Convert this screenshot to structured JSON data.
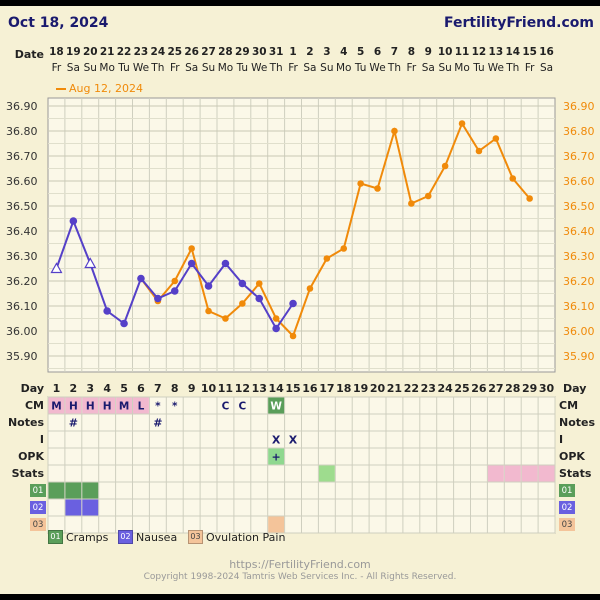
{
  "header": {
    "date": "Oct 18, 2024",
    "site": "FertilityFriend.com"
  },
  "footer": {
    "url": "https://FertilityFriend.com",
    "copyright": "Copyright 1998-2024 Tamtris Web Services Inc. - All Rights Reserved."
  },
  "colors": {
    "orange": "#f08a0a",
    "blue": "#5540c8",
    "cm_pink": "#f2b9cf",
    "cm_green": "#5a9e5a",
    "stats_green": "#9edc8e",
    "stats_pink": "#f2b9cf",
    "cramps": "#5a9e5a",
    "nausea": "#6a60e0",
    "ovulation": "#f4c49a",
    "background": "#f6f1d5"
  },
  "chart_data": {
    "type": "line",
    "title": "",
    "xlabel": "Day",
    "ylabel": "",
    "ylim": [
      35.8,
      36.95
    ],
    "y_ticks": [
      "36.90",
      "36.80",
      "36.70",
      "36.60",
      "36.50",
      "36.40",
      "36.30",
      "36.20",
      "36.10",
      "36.00",
      "35.90"
    ],
    "dates": [
      "18",
      "19",
      "20",
      "21",
      "22",
      "23",
      "24",
      "25",
      "26",
      "27",
      "28",
      "29",
      "30",
      "31",
      "1",
      "2",
      "3",
      "4",
      "5",
      "6",
      "7",
      "8",
      "9",
      "10",
      "11",
      "12",
      "13",
      "14",
      "15",
      "16"
    ],
    "weekdays": [
      "Fr",
      "Sa",
      "Su",
      "Mo",
      "Tu",
      "We",
      "Th",
      "Fr",
      "Sa",
      "Su",
      "Mo",
      "Tu",
      "We",
      "Th",
      "Fr",
      "Sa",
      "Su",
      "Mo",
      "Tu",
      "We",
      "Th",
      "Fr",
      "Sa",
      "Su",
      "Mo",
      "Tu",
      "We",
      "Th",
      "Fr",
      "Sa"
    ],
    "days": [
      "1",
      "2",
      "3",
      "4",
      "5",
      "6",
      "7",
      "8",
      "9",
      "10",
      "11",
      "12",
      "13",
      "14",
      "15",
      "16",
      "17",
      "18",
      "19",
      "20",
      "21",
      "22",
      "23",
      "24",
      "25",
      "26",
      "27",
      "28",
      "29",
      "30"
    ],
    "series": [
      {
        "name": "Aug 12, 2024",
        "color": "#f08a0a",
        "values": [
          null,
          null,
          null,
          null,
          null,
          36.21,
          36.12,
          36.2,
          36.33,
          36.08,
          36.05,
          36.11,
          36.19,
          36.05,
          35.98,
          36.17,
          36.29,
          36.33,
          36.59,
          36.57,
          36.8,
          36.51,
          36.54,
          36.66,
          36.83,
          36.72,
          36.77,
          36.61,
          36.53,
          null
        ]
      },
      {
        "name": "",
        "color": "#5540c8",
        "values": [
          36.25,
          36.44,
          36.27,
          36.08,
          36.03,
          36.21,
          36.13,
          36.16,
          36.27,
          36.18,
          36.27,
          36.19,
          36.13,
          36.01,
          36.11,
          null,
          null,
          null,
          null,
          null,
          null,
          null,
          null,
          null,
          null,
          null,
          null,
          null,
          null,
          null
        ],
        "open_markers": [
          0,
          2
        ]
      }
    ],
    "rows": {
      "labels": [
        "CM",
        "Notes",
        "I",
        "OPK",
        "Stats",
        "01",
        "02",
        "03"
      ],
      "cm": [
        "M",
        "H",
        "H",
        "H",
        "M",
        "L",
        "*",
        "*",
        "",
        "",
        "C",
        "C",
        "",
        "W",
        "",
        "",
        "",
        "",
        "",
        "",
        "",
        "",
        "",
        "",
        "",
        "",
        "",
        "",
        "",
        ""
      ],
      "cm_colored": [
        0,
        1,
        2,
        3,
        4,
        5,
        13
      ],
      "notes": [
        "",
        "#",
        "",
        "",
        "",
        "",
        "#",
        "",
        "",
        "",
        "",
        "",
        "",
        "",
        "",
        "",
        "",
        "",
        "",
        "",
        "",
        "",
        "",
        "",
        "",
        "",
        "",
        "",
        "",
        ""
      ],
      "intercourse": [
        "",
        "",
        "",
        "",
        "",
        "",
        "",
        "",
        "",
        "",
        "",
        "",
        "",
        "X",
        "X",
        "",
        "",
        "",
        "",
        "",
        "",
        "",
        "",
        "",
        "",
        "",
        "",
        "",
        "",
        ""
      ],
      "opk": [
        "",
        "",
        "",
        "",
        "",
        "",
        "",
        "",
        "",
        "",
        "",
        "",
        "",
        "+",
        "",
        "",
        "",
        "",
        "",
        "",
        "",
        "",
        "",
        "",
        "",
        "",
        "",
        "",
        "",
        ""
      ],
      "stats_green_days": [
        16
      ],
      "stats_pink_days": [
        26,
        27,
        28,
        29
      ],
      "cramps_days": [
        0,
        1,
        2
      ],
      "nausea_days": [
        1,
        2
      ],
      "ovulation_days": [
        13
      ]
    },
    "legend": [
      {
        "code": "01",
        "label": "Cramps"
      },
      {
        "code": "02",
        "label": "Nausea"
      },
      {
        "code": "03",
        "label": "Ovulation Pain"
      }
    ]
  }
}
